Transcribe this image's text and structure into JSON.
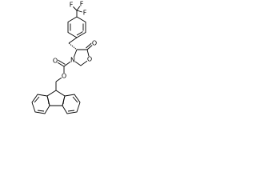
{
  "atoms": [
    {
      "label": "F"
    },
    {
      "label": "F"
    },
    {
      "label": "F"
    },
    {
      "label": "O"
    },
    {
      "label": "O"
    },
    {
      "label": "N"
    },
    {
      "label": "O"
    },
    {
      "label": "O"
    }
  ]
}
